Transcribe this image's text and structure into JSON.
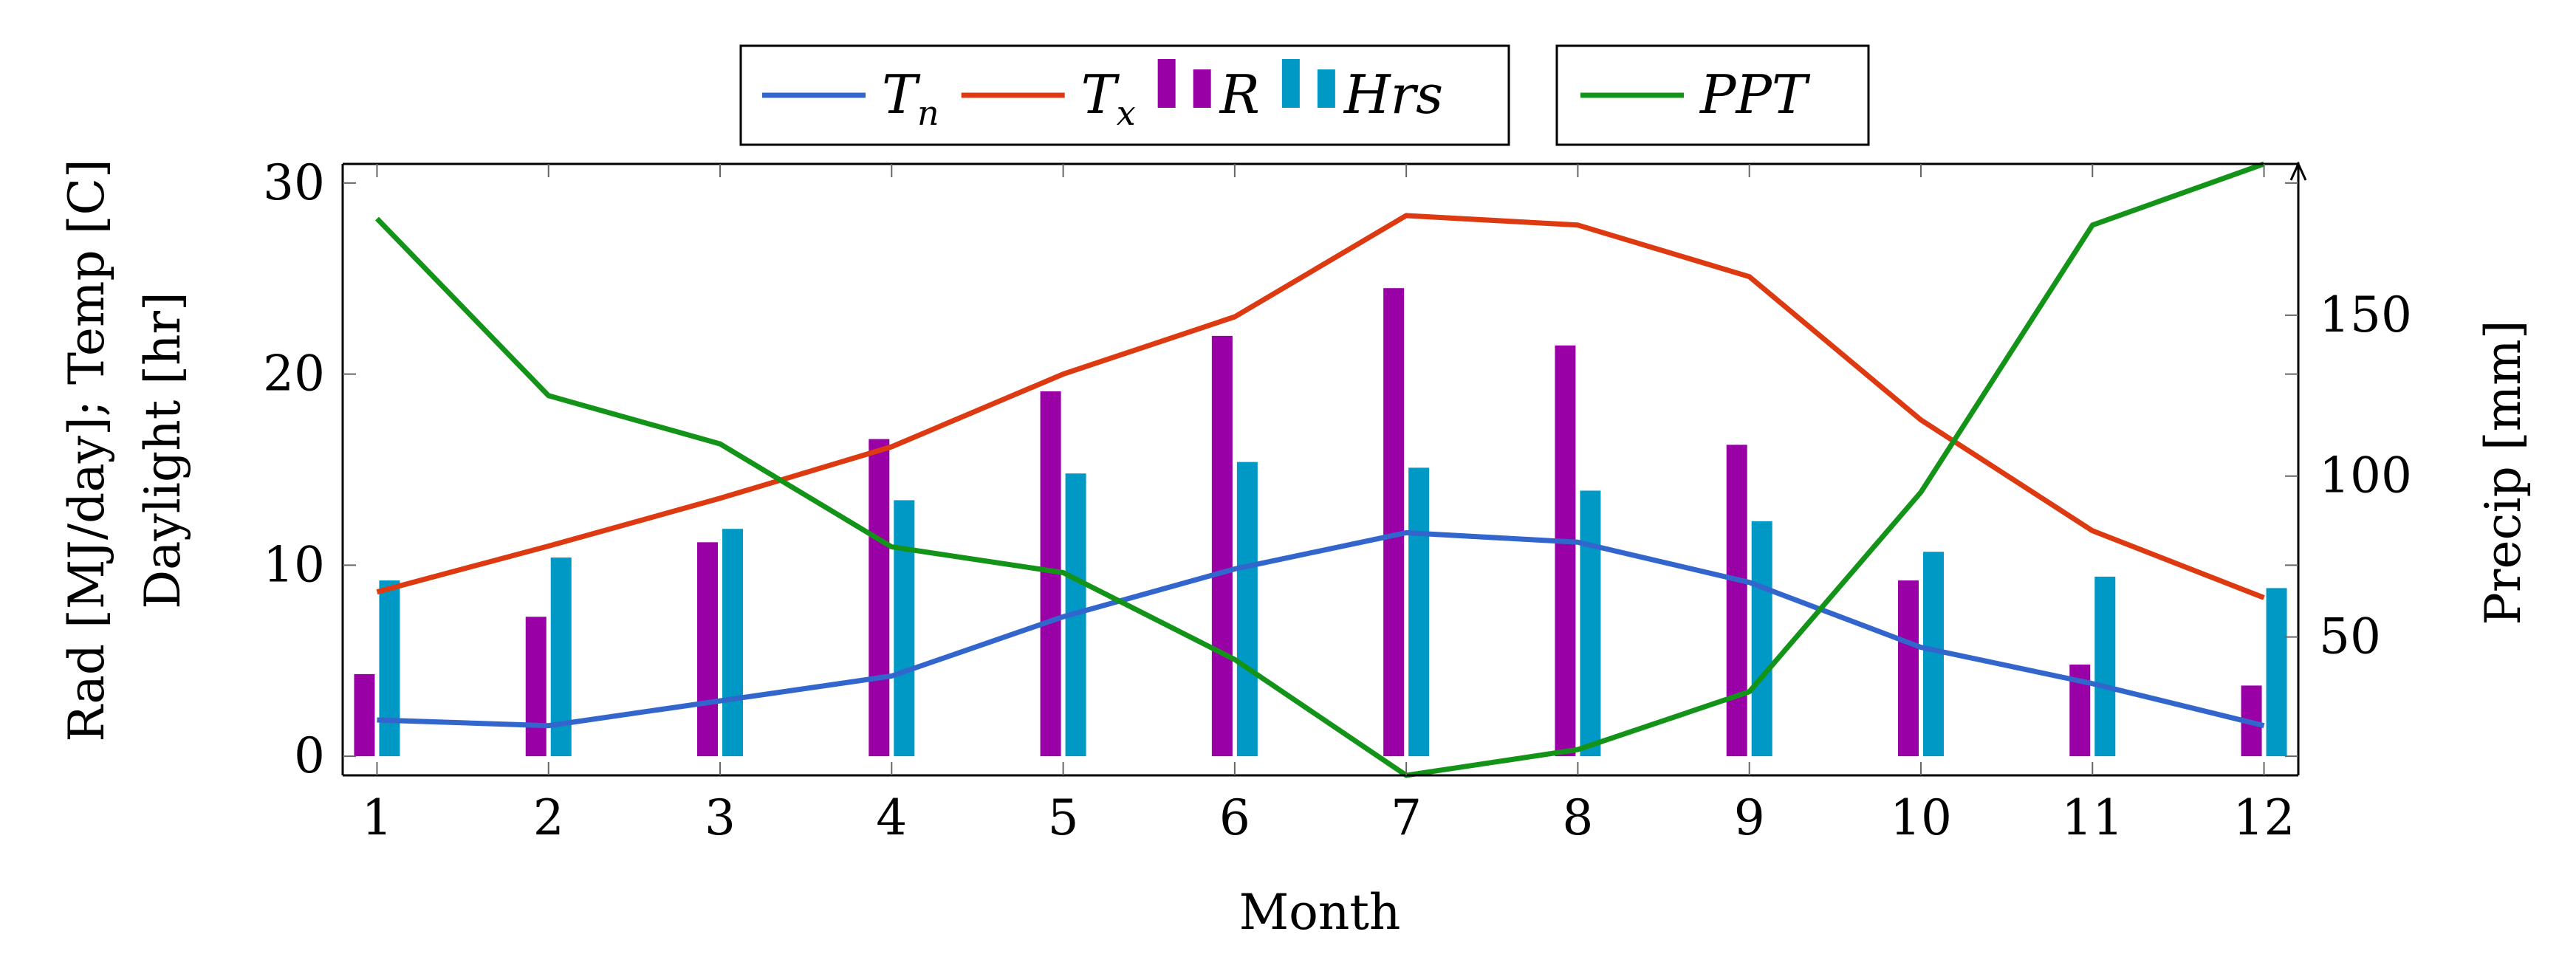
{
  "chart_data": {
    "type": "bar+line (dual axis)",
    "categories": [
      1,
      2,
      3,
      4,
      5,
      6,
      7,
      8,
      9,
      10,
      11,
      12
    ],
    "xlabel": "Month",
    "ylabel_left_line1": "Rad [MJ/day]; Temp [C]",
    "ylabel_left_line2": "Daylight [hr]",
    "ylabel_right": "Precip [mm]",
    "ylim_left": [
      -1,
      31
    ],
    "ylim_right": [
      7,
      197
    ],
    "yticks_left": [
      0,
      10,
      20,
      30
    ],
    "yticks_right": [
      50,
      100,
      150
    ],
    "grid": false,
    "legend_left": {
      "placement": "top-center",
      "entries": [
        {
          "key": "Tn",
          "base": "T",
          "sub": "n",
          "color": "#3366cc",
          "kind": "line"
        },
        {
          "key": "Tx",
          "base": "T",
          "sub": "x",
          "color": "#dd3a11",
          "kind": "line"
        },
        {
          "key": "R",
          "base": "R",
          "sub": "",
          "color": "#9900a6",
          "kind": "bar"
        },
        {
          "key": "Hrs",
          "base": "Hrs",
          "sub": "",
          "color": "#0099c6",
          "kind": "bar"
        }
      ]
    },
    "legend_right": {
      "placement": "top-center",
      "entries": [
        {
          "key": "PPT",
          "base": "PPT",
          "sub": "",
          "color": "#139419",
          "kind": "line"
        }
      ]
    },
    "series": [
      {
        "name": "Tn",
        "axis": "left",
        "type": "line",
        "color": "#3366cc",
        "values": [
          1.9,
          1.6,
          2.9,
          4.2,
          7.3,
          9.8,
          11.7,
          11.2,
          9.1,
          5.7,
          3.8,
          1.6
        ]
      },
      {
        "name": "Tx",
        "axis": "left",
        "type": "line",
        "color": "#dd3a11",
        "values": [
          8.6,
          11.0,
          13.5,
          16.2,
          20.0,
          23.0,
          28.3,
          27.8,
          25.1,
          17.6,
          11.8,
          8.3
        ]
      },
      {
        "name": "R",
        "axis": "left",
        "type": "bar",
        "color": "#9900a6",
        "values": [
          4.3,
          7.3,
          11.2,
          16.6,
          19.1,
          22.0,
          24.5,
          21.5,
          16.3,
          9.2,
          4.8,
          3.7
        ]
      },
      {
        "name": "Hrs",
        "axis": "left",
        "type": "bar",
        "color": "#0099c6",
        "values": [
          9.2,
          10.4,
          11.9,
          13.4,
          14.8,
          15.4,
          15.1,
          13.9,
          12.3,
          10.7,
          9.4,
          8.8
        ]
      },
      {
        "name": "PPT",
        "axis": "right",
        "type": "line",
        "color": "#139419",
        "values": [
          180,
          125,
          110,
          78,
          70,
          43,
          7,
          15,
          33,
          95,
          178,
          197
        ]
      }
    ]
  }
}
